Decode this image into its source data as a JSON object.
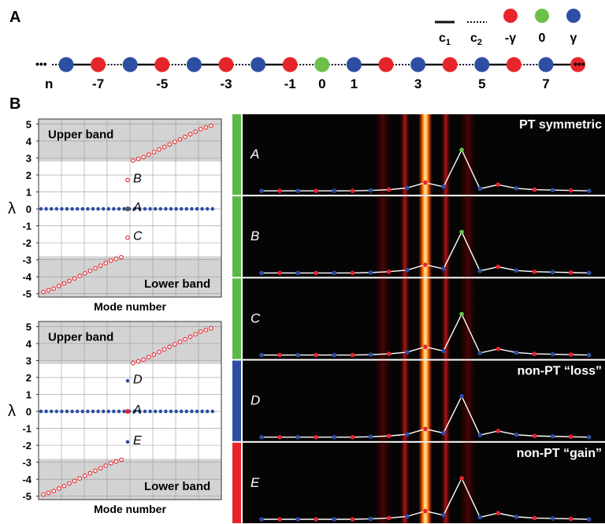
{
  "panel_a": {
    "label": "A",
    "legend": [
      {
        "key": "c1",
        "label": "c",
        "sub": "1",
        "kind": "solid"
      },
      {
        "key": "c2",
        "label": "c",
        "sub": "2",
        "kind": "dotted"
      },
      {
        "key": "neg_gamma",
        "label": "-γ",
        "kind": "dot",
        "color": "#e8242b"
      },
      {
        "key": "zero",
        "label": "0",
        "kind": "dot",
        "color": "#6cc04a"
      },
      {
        "key": "gamma",
        "label": "γ",
        "kind": "dot",
        "color": "#2c4ea3"
      }
    ],
    "ellipsis_left": "•••",
    "ellipsis_right": "•••",
    "n_label": "n",
    "site_labels": [
      "-7",
      "-5",
      "-3",
      "-1",
      "0",
      "1",
      "3",
      "5",
      "7"
    ],
    "chain_colors": [
      "blue",
      "red",
      "blue",
      "red",
      "blue",
      "red",
      "blue",
      "red",
      "green",
      "blue",
      "red",
      "blue",
      "red",
      "blue",
      "red",
      "blue",
      "red"
    ]
  },
  "panel_b_label": "B",
  "spectra": [
    {
      "ylabel": "λ",
      "xlabel": "Mode number",
      "upper_band_label": "Upper band",
      "lower_band_label": "Lower band",
      "point_labels": [
        "B",
        "A",
        "C"
      ],
      "yticks": [
        "5",
        "4",
        "3",
        "2",
        "1",
        "0",
        "-1",
        "-2",
        "-3",
        "-4",
        "-5"
      ],
      "chart_data": {
        "type": "scatter",
        "xlabel": "Mode number",
        "ylabel": "λ",
        "ylim": [
          -5.2,
          5.3
        ],
        "upper_band": [
          2.8,
          5.3
        ],
        "lower_band": [
          -5.2,
          -2.8
        ],
        "series": [
          {
            "values_upper": [
              2.85,
              2.95,
              3.05,
              3.2,
              3.35,
              3.5,
              3.65,
              3.8,
              3.95,
              4.1,
              4.25,
              4.4,
              4.55,
              4.7,
              4.8,
              4.9
            ],
            "values_lower": [
              -4.9,
              -4.8,
              -4.7,
              -4.55,
              -4.4,
              -4.25,
              -4.1,
              -3.95,
              -3.8,
              -3.65,
              -3.5,
              -3.35,
              -3.2,
              -3.05,
              -2.95,
              -2.85
            ],
            "zero_modes": 34,
            "B": 1.7,
            "A": 0,
            "C": -1.7
          }
        ],
        "grid": true
      }
    },
    {
      "ylabel": "λ",
      "xlabel": "Mode number",
      "upper_band_label": "Upper band",
      "lower_band_label": "Lower band",
      "point_labels": [
        "D",
        "A",
        "E"
      ],
      "yticks": [
        "5",
        "4",
        "3",
        "2",
        "1",
        "0",
        "-1",
        "-2",
        "-3",
        "-4",
        "-5"
      ],
      "chart_data": {
        "type": "scatter",
        "xlabel": "Mode number",
        "ylabel": "λ",
        "ylim": [
          -5.2,
          5.3
        ],
        "upper_band": [
          2.8,
          5.3
        ],
        "lower_band": [
          -5.2,
          -2.8
        ],
        "series": [
          {
            "values_upper": [
              2.85,
              2.95,
              3.05,
              3.2,
              3.35,
              3.5,
              3.65,
              3.8,
              3.95,
              4.1,
              4.25,
              4.4,
              4.55,
              4.7,
              4.8,
              4.9
            ],
            "values_lower": [
              -4.9,
              -4.8,
              -4.7,
              -4.55,
              -4.4,
              -4.25,
              -4.1,
              -3.95,
              -3.8,
              -3.65,
              -3.5,
              -3.35,
              -3.2,
              -3.05,
              -2.95,
              -2.85
            ],
            "zero_modes": 34,
            "D": 1.8,
            "A": 0,
            "E": -1.8
          }
        ],
        "grid": true
      }
    }
  ],
  "profiles": [
    {
      "label": "A",
      "bar_color": "#5cb848",
      "title": "PT symmetric",
      "center_color": "#6cc04a"
    },
    {
      "label": "B",
      "bar_color": "#5cb848",
      "title": "",
      "center_color": "#6cc04a"
    },
    {
      "label": "C",
      "bar_color": "#5cb848",
      "title": "",
      "center_color": "#6cc04a"
    },
    {
      "label": "D",
      "bar_color": "#2c4ea3",
      "title": "non-PT “loss”",
      "center_color": "#2c4ea3"
    },
    {
      "label": "E",
      "bar_color": "#e8242b",
      "title": "non-PT “gain”",
      "center_color": "#e8242b"
    }
  ],
  "colors": {
    "red": "#e8242b",
    "blue": "#2c4ea3",
    "green": "#6cc04a",
    "band": "#d3d3d3"
  }
}
